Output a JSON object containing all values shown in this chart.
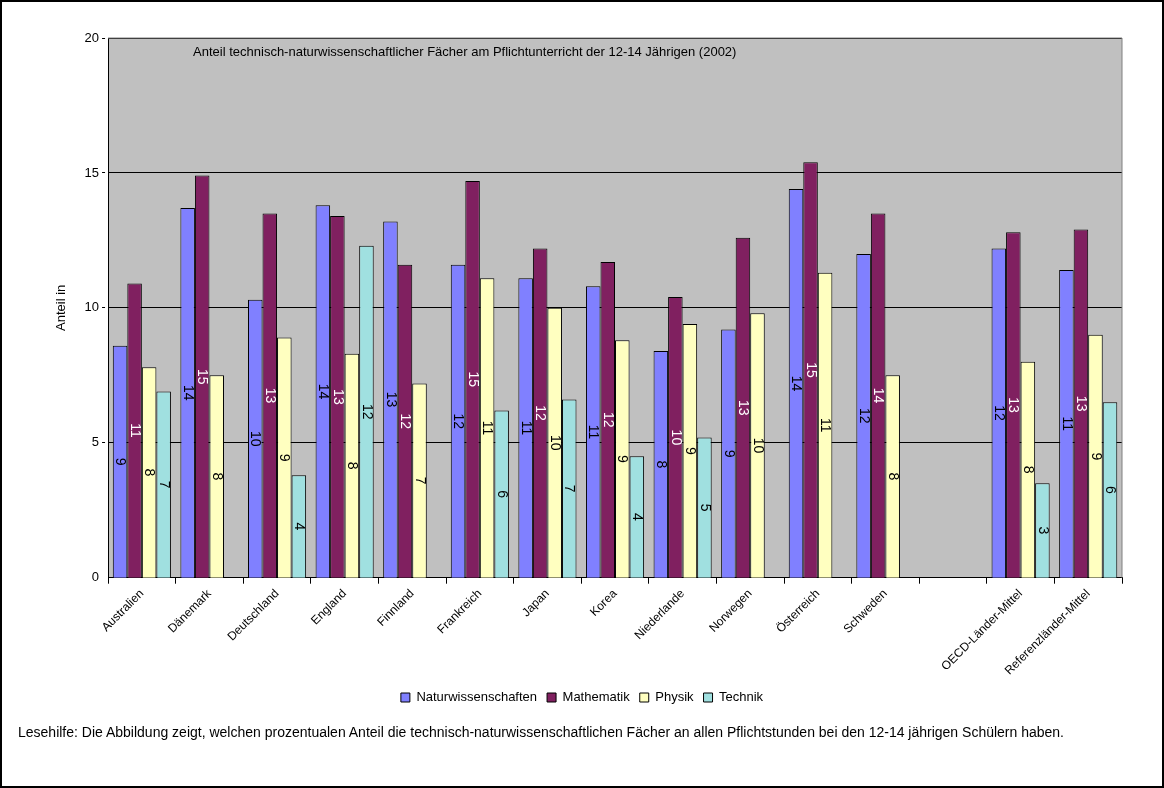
{
  "chart_data": {
    "type": "bar",
    "title": "Anteil technisch-naturwissenschaftlicher Fächer am Pflichtunterricht der 12-14 Jährigen (2002)",
    "ylabel": "Anteil in",
    "categories": [
      "Australien",
      "Dänemark",
      "Deutschland",
      "England",
      "Finnland",
      "Frankreich",
      "Japan",
      "Korea",
      "Niederlande",
      "Norwegen",
      "Österreich",
      "Schweden",
      null,
      "OECD-Länder-Mittel",
      "Referenzländer-Mittel"
    ],
    "series": [
      {
        "name": "Naturwissenschaften",
        "color": "#8080ff",
        "values": [
          8.6,
          13.7,
          10.3,
          13.8,
          13.2,
          11.6,
          11.1,
          10.8,
          8.4,
          9.2,
          14.4,
          12.0,
          null,
          12.2,
          11.4
        ],
        "value_labels": [
          "9",
          "14",
          "10",
          "14",
          "13",
          "12",
          "11",
          "11",
          "8",
          "9",
          "14",
          "12",
          null,
          "12",
          "11"
        ]
      },
      {
        "name": "Mathematik",
        "color": "#802060",
        "values": [
          10.9,
          14.9,
          13.5,
          13.4,
          11.6,
          14.7,
          12.2,
          11.7,
          10.4,
          12.6,
          15.4,
          13.5,
          null,
          12.8,
          12.9
        ],
        "value_labels": [
          "11",
          "15",
          "13",
          "13",
          "12",
          "15",
          "12",
          "12",
          "10",
          "13",
          "15",
          "14",
          null,
          "13",
          "13"
        ]
      },
      {
        "name": "Physik",
        "color": "#ffffc0",
        "values": [
          7.8,
          7.5,
          8.9,
          8.3,
          7.2,
          11.1,
          10.0,
          8.8,
          9.4,
          9.8,
          11.3,
          7.5,
          null,
          8.0,
          9.0
        ],
        "value_labels": [
          "8",
          "8",
          "9",
          "8",
          "7",
          "11",
          "10",
          "9",
          "9",
          "10",
          "11",
          "8",
          null,
          "8",
          "9"
        ]
      },
      {
        "name": "Technik",
        "color": "#a0e0e0",
        "values": [
          6.9,
          null,
          3.8,
          12.3,
          null,
          6.2,
          6.6,
          4.5,
          5.2,
          null,
          null,
          null,
          null,
          3.5,
          6.5
        ],
        "value_labels": [
          "7",
          null,
          "4",
          "12",
          null,
          "6",
          "7",
          "4",
          "5",
          null,
          null,
          null,
          null,
          "3",
          "6"
        ]
      }
    ],
    "ylim": [
      0,
      20
    ],
    "yticks": [
      0,
      5,
      10,
      15,
      20
    ],
    "grid": "y",
    "legend": "bottom",
    "annotations": [
      "Lesehilfe: Die Abbildung zeigt, welchen prozentualen Anteil die technisch-naturwissenschaftlichen Fächer an allen Pflichtstunden bei den 12-14 jährigen Schülern haben."
    ]
  }
}
